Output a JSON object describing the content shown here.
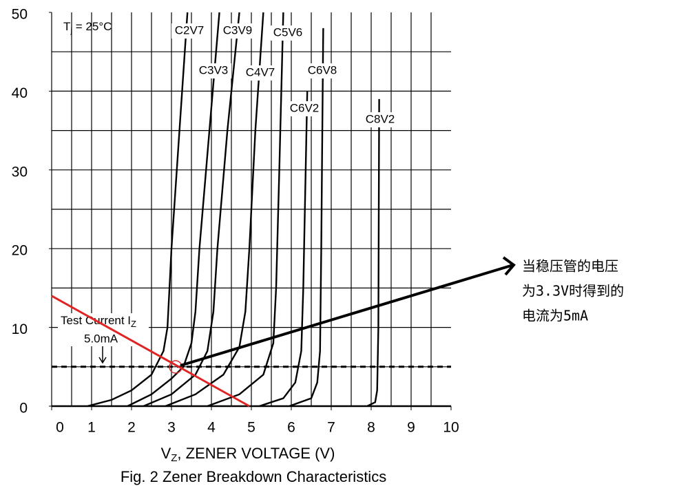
{
  "chart_data": {
    "type": "line",
    "xlabel": {
      "main": "V",
      "sub": "Z",
      "rest": ", ZENER VOLTAGE (V)"
    },
    "caption": "Fig. 2  Zener Breakdown Characteristics",
    "condition": {
      "main": "T",
      "sub": "j",
      "rest": " = 25°C"
    },
    "test_current": {
      "label_main": "Test Current I",
      "label_sub": "Z",
      "label_value": "5.0mA",
      "value": 5
    },
    "callout": [
      "当稳压管的电压",
      "为3.3V时得到的",
      "电流为5mA"
    ],
    "xlim": [
      0,
      10
    ],
    "ylim": [
      0,
      50
    ],
    "xticks": [
      0,
      1,
      2,
      3,
      4,
      5,
      6,
      7,
      8,
      9,
      10
    ],
    "yticks": [
      0,
      10,
      20,
      30,
      40,
      50
    ],
    "xgrid": [
      0.5,
      1,
      1.5,
      2,
      2.5,
      3,
      3.5,
      4,
      4.5,
      5,
      5.5,
      6,
      6.5,
      7,
      7.5,
      8,
      8.5,
      9,
      9.5
    ],
    "ygrid": [
      5,
      10,
      15,
      20,
      25,
      30,
      35,
      40,
      45
    ],
    "grid": true,
    "series": [
      {
        "name": "C2V7",
        "color": "#000000",
        "x": [
          0.9,
          1.5,
          2,
          2.5,
          2.8,
          2.9,
          3.0,
          3.2,
          3.4
        ],
        "values": [
          0,
          0.8,
          2,
          4,
          7,
          10,
          20,
          35,
          50
        ]
      },
      {
        "name": "C3V3",
        "color": "#000000",
        "x": [
          1.9,
          2.5,
          3,
          3.3,
          3.5,
          3.6,
          3.7,
          3.95,
          4.2
        ],
        "values": [
          0,
          1.5,
          3.5,
          5,
          8,
          12,
          20,
          35,
          50
        ]
      },
      {
        "name": "C3V9",
        "color": "#000000",
        "x": [
          2.3,
          3,
          3.6,
          3.9,
          4.05,
          4.15,
          4.4,
          4.7
        ],
        "values": [
          0,
          1.5,
          4,
          7,
          12,
          20,
          35,
          50
        ]
      },
      {
        "name": "C4V7",
        "color": "#000000",
        "x": [
          2.85,
          3.6,
          4.3,
          4.7,
          4.85,
          4.95,
          5.1,
          5.3
        ],
        "values": [
          0,
          1.5,
          4,
          7.5,
          12,
          20,
          35,
          50
        ]
      },
      {
        "name": "C5V6",
        "color": "#000000",
        "x": [
          3.9,
          4.7,
          5.3,
          5.55,
          5.62,
          5.7,
          5.8
        ],
        "values": [
          0,
          1.5,
          4,
          8,
          15,
          30,
          50
        ]
      },
      {
        "name": "C6V2",
        "color": "#000000",
        "x": [
          5.2,
          5.8,
          6.1,
          6.25,
          6.3,
          6.4
        ],
        "values": [
          0,
          1,
          3,
          7,
          15,
          40
        ]
      },
      {
        "name": "C6V8",
        "color": "#000000",
        "x": [
          5.95,
          6.5,
          6.65,
          6.72,
          6.75,
          6.8
        ],
        "values": [
          0,
          1,
          3,
          7,
          20,
          48
        ]
      },
      {
        "name": "C8V2",
        "color": "#000000",
        "x": [
          7.9,
          8.1,
          8.15,
          8.18,
          8.2
        ],
        "values": [
          0,
          0.5,
          2,
          10,
          39
        ]
      }
    ],
    "load_line": {
      "color": "#e02424",
      "x": [
        0,
        4.95
      ],
      "values": [
        14,
        0
      ]
    }
  }
}
